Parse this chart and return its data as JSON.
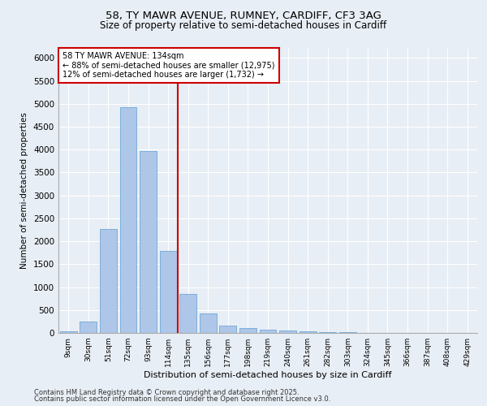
{
  "title1": "58, TY MAWR AVENUE, RUMNEY, CARDIFF, CF3 3AG",
  "title2": "Size of property relative to semi-detached houses in Cardiff",
  "xlabel": "Distribution of semi-detached houses by size in Cardiff",
  "ylabel": "Number of semi-detached properties",
  "categories": [
    "9sqm",
    "30sqm",
    "51sqm",
    "72sqm",
    "93sqm",
    "114sqm",
    "135sqm",
    "156sqm",
    "177sqm",
    "198sqm",
    "219sqm",
    "240sqm",
    "261sqm",
    "282sqm",
    "303sqm",
    "324sqm",
    "345sqm",
    "366sqm",
    "387sqm",
    "408sqm",
    "429sqm"
  ],
  "values": [
    40,
    245,
    2260,
    4930,
    3970,
    1790,
    850,
    425,
    165,
    100,
    65,
    50,
    30,
    20,
    15,
    8,
    5,
    5,
    3,
    2,
    1
  ],
  "bar_color": "#aec6e8",
  "bar_edge_color": "#5a9fd4",
  "vline_x_idx": 5.5,
  "vline_color": "#cc0000",
  "annotation_text_line1": "58 TY MAWR AVENUE: 134sqm",
  "annotation_text_line2": "← 88% of semi-detached houses are smaller (12,975)",
  "annotation_text_line3": "12% of semi-detached houses are larger (1,732) →",
  "ylim": [
    0,
    6200
  ],
  "yticks": [
    0,
    500,
    1000,
    1500,
    2000,
    2500,
    3000,
    3500,
    4000,
    4500,
    5000,
    5500,
    6000
  ],
  "background_color": "#e8eef5",
  "footnote1": "Contains HM Land Registry data © Crown copyright and database right 2025.",
  "footnote2": "Contains public sector information licensed under the Open Government Licence v3.0."
}
